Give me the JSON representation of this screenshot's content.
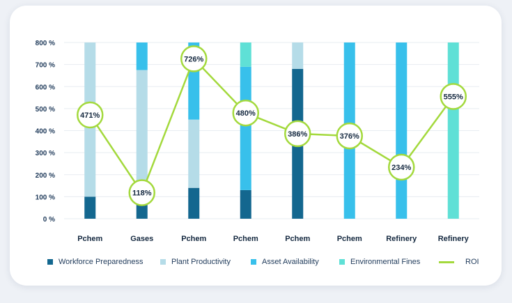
{
  "chart_data": {
    "type": "bar",
    "stacked": true,
    "categories": [
      "Pchem",
      "Gases",
      "Pchem",
      "Pchem",
      "Pchem",
      "Pchem",
      "Refinery",
      "Refinery"
    ],
    "ylim": [
      0,
      800
    ],
    "yticks": [
      0,
      100,
      200,
      300,
      400,
      500,
      600,
      700,
      800
    ],
    "ytick_labels": [
      "0 %",
      "100 %",
      "200 %",
      "300 %",
      "400 %",
      "500 %",
      "600 %",
      "700 %",
      "800 %"
    ],
    "series": [
      {
        "name": "Workforce Preparedness",
        "color": "#13678f",
        "values": [
          100,
          100,
          140,
          130,
          680,
          0,
          0,
          0
        ]
      },
      {
        "name": "Plant Productivity",
        "color": "#b5dce8",
        "values": [
          700,
          575,
          310,
          0,
          120,
          0,
          0,
          0
        ]
      },
      {
        "name": "Asset Availability",
        "color": "#38c0eb",
        "values": [
          0,
          125,
          350,
          560,
          0,
          800,
          800,
          0
        ]
      },
      {
        "name": "Environmental Fines",
        "color": "#5fe0d6",
        "values": [
          0,
          0,
          0,
          110,
          0,
          0,
          0,
          800
        ]
      }
    ],
    "line": {
      "name": "ROI",
      "color": "#a3d93c",
      "values": [
        471,
        118,
        726,
        480,
        386,
        376,
        234,
        555
      ],
      "labels": [
        "471%",
        "118%",
        "726%",
        "480%",
        "386%",
        "376%",
        "234%",
        "555%"
      ]
    },
    "legend_position": "bottom",
    "grid": true
  }
}
